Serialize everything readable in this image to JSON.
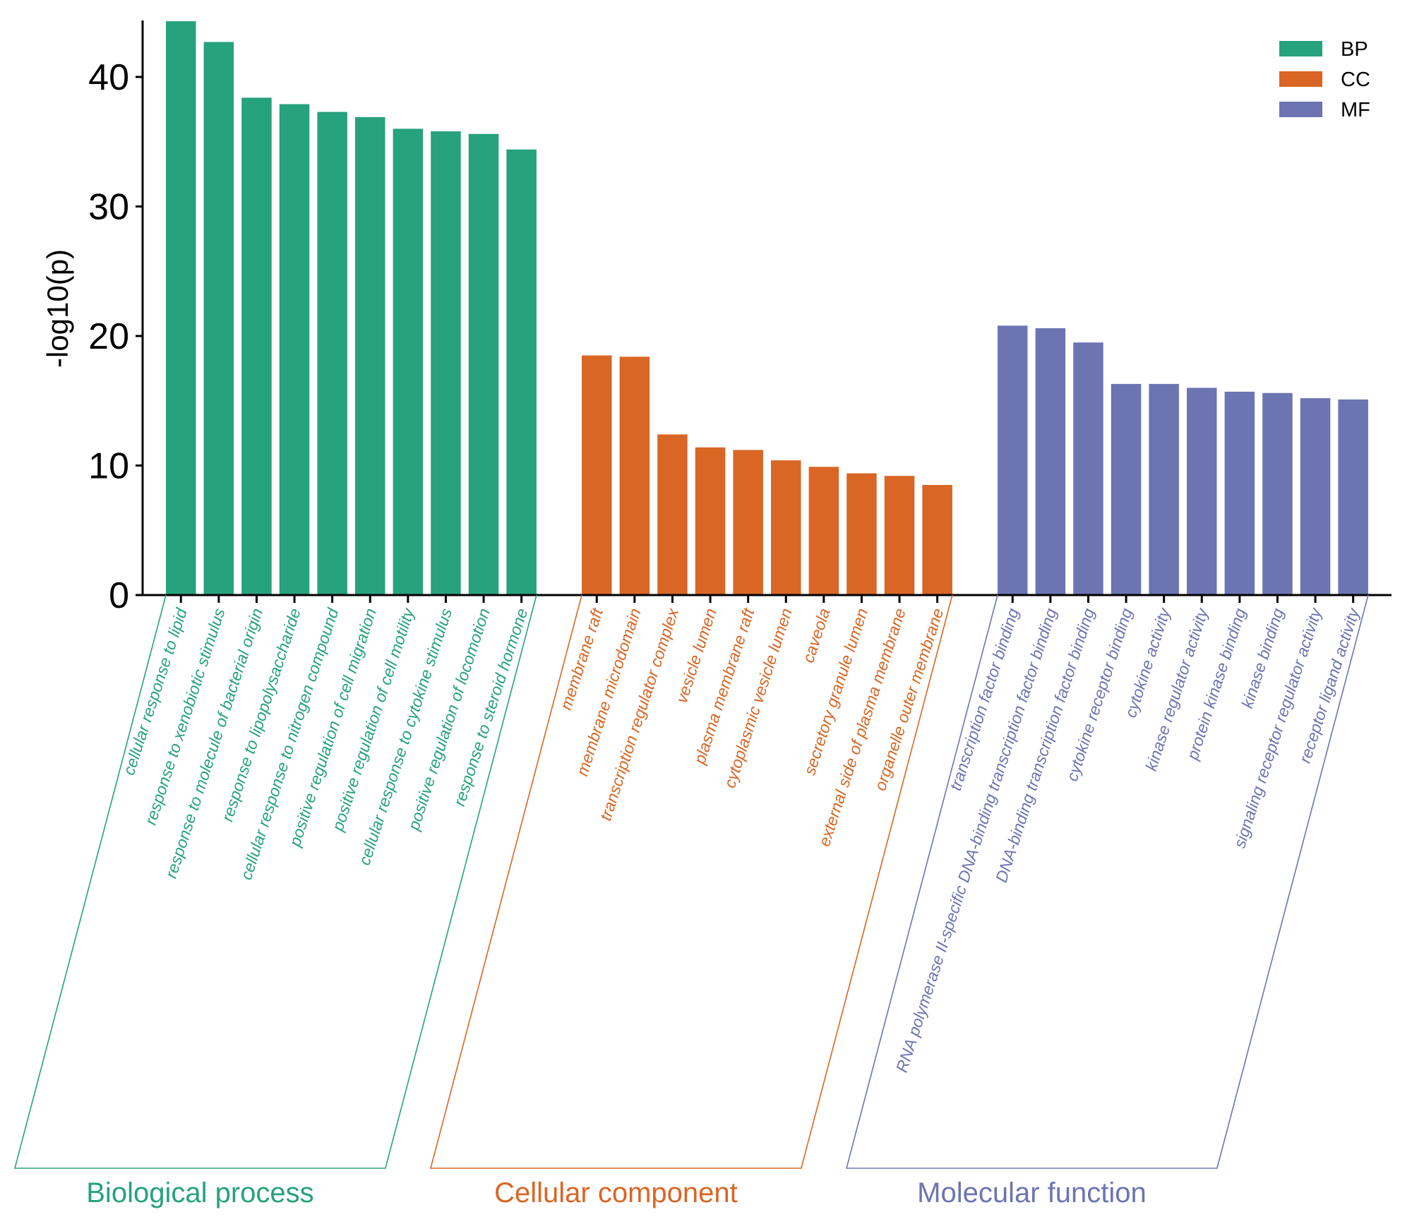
{
  "chart_data": {
    "type": "bar",
    "title": "",
    "xlabel": "",
    "ylabel": "-log10(p)",
    "ylim": [
      0,
      45
    ],
    "yticks": [
      0,
      10,
      20,
      30,
      40
    ],
    "grid": false,
    "legend": {
      "placement": "top-right",
      "entries": [
        {
          "key": "BP",
          "label": "BP",
          "color": "#26A27D"
        },
        {
          "key": "CC",
          "label": "CC",
          "color": "#D96624"
        },
        {
          "key": "MF",
          "label": "MF",
          "color": "#6D74B2"
        }
      ]
    },
    "groups": [
      {
        "key": "BP",
        "title": "Biological process",
        "color": "#26A27D",
        "categories": [
          "cellular response to lipid",
          "response to xenobiotic stimulus",
          "response to molecule of bacterial origin",
          "response to lipopolysaccharide",
          "cellular response to nitrogen compound",
          "positive regulation of cell migration",
          "positive regulation of cell motility",
          "cellular response to cytokine stimulus",
          "positive regulation of locomotion",
          "response to steroid hormone"
        ],
        "values": [
          44.3,
          42.7,
          38.4,
          37.9,
          37.3,
          36.9,
          36.0,
          35.8,
          35.6,
          34.4
        ]
      },
      {
        "key": "CC",
        "title": "Cellular component",
        "color": "#D96624",
        "categories": [
          "membrane raft",
          "membrane microdomain",
          "transcription regulator complex",
          "vesicle lumen",
          "plasma membrane raft",
          "cytoplasmic vesicle lumen",
          "caveola",
          "secretory granule lumen",
          "external side of plasma membrane",
          "organelle outer membrane"
        ],
        "values": [
          18.5,
          18.4,
          12.4,
          11.4,
          11.2,
          10.4,
          9.9,
          9.4,
          9.2,
          8.5
        ]
      },
      {
        "key": "MF",
        "title": "Molecular function",
        "color": "#6D74B2",
        "categories": [
          "transcription factor binding",
          "RNA polymerase II-specific DNA-binding transcription factor binding",
          "DNA-binding transcription factor binding",
          "cytokine receptor binding",
          "cytokine activity",
          "kinase regulator activity",
          "protein kinase binding",
          "kinase binding",
          "signaling receptor regulator activity",
          "receptor ligand activity"
        ],
        "values": [
          20.8,
          20.6,
          19.5,
          16.3,
          16.3,
          16.0,
          15.7,
          15.6,
          15.2,
          15.1
        ]
      }
    ]
  }
}
